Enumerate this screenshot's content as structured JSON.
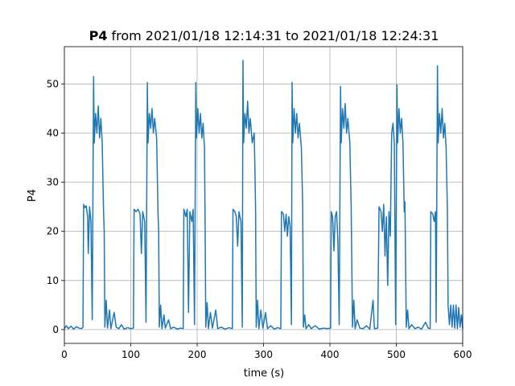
{
  "chart_data": {
    "type": "line",
    "title_variable": "P4",
    "title_range": "from 2021/01/18 12:14:31 to 2021/01/18 12:24:31",
    "xlabel": "time (s)",
    "ylabel": "P4",
    "color": "#1f77b4",
    "grid": true,
    "xlim": [
      0,
      600
    ],
    "ylim": [
      -2.8,
      57.6
    ],
    "xticks": [
      0,
      100,
      200,
      300,
      400,
      500,
      600
    ],
    "yticks": [
      0,
      10,
      20,
      30,
      40,
      50
    ],
    "x": [
      0,
      3,
      6,
      10,
      14,
      18,
      22,
      26,
      28,
      29,
      31,
      33,
      35,
      36,
      38,
      40,
      42,
      44,
      45,
      47,
      49,
      51,
      53,
      55,
      57,
      59,
      60,
      61,
      63,
      65,
      68,
      70,
      75,
      78,
      82,
      86,
      90,
      95,
      100,
      104,
      105,
      108,
      111,
      114,
      116,
      118,
      121,
      123,
      125,
      126,
      128,
      130,
      132,
      134,
      136,
      139,
      141,
      142,
      143,
      145,
      147,
      150,
      152,
      157,
      160,
      165,
      170,
      175,
      179,
      180,
      183,
      185,
      187,
      189,
      192,
      194,
      196,
      198,
      199,
      201,
      203,
      205,
      207,
      209,
      211,
      212,
      213,
      215,
      217,
      220,
      223,
      228,
      231,
      236,
      242,
      248,
      253,
      254,
      257,
      259,
      261,
      263,
      266,
      268,
      269,
      270,
      272,
      274,
      276,
      278,
      280,
      283,
      286,
      288,
      289,
      291,
      293,
      296,
      299,
      303,
      306,
      311,
      316,
      321,
      326,
      327,
      330,
      332,
      334,
      336,
      338,
      340,
      342,
      343,
      344,
      346,
      348,
      350,
      352,
      354,
      357,
      359,
      360,
      362,
      364,
      368,
      372,
      378,
      384,
      390,
      396,
      401,
      402,
      404,
      406,
      408,
      410,
      412,
      414,
      416,
      417,
      419,
      421,
      423,
      425,
      427,
      430,
      432,
      434,
      436,
      438,
      441,
      445,
      450,
      455,
      460,
      465,
      467,
      472,
      474,
      477,
      479,
      481,
      483,
      485,
      487,
      489,
      491,
      493,
      495,
      497,
      499,
      501,
      502,
      504,
      506,
      508,
      510,
      512,
      513,
      515,
      517,
      519,
      523,
      528,
      533,
      538,
      544,
      548,
      551,
      552,
      555,
      557,
      559,
      560,
      562,
      563,
      565,
      567,
      569,
      571,
      573,
      575,
      577,
      578,
      580,
      582,
      584,
      586,
      588,
      590,
      592,
      594,
      596,
      598,
      600
    ],
    "values": [
      0.2,
      0.8,
      0.2,
      0.7,
      0.1,
      0.6,
      0.3,
      0.2,
      0.5,
      25.5,
      24.8,
      25.2,
      23,
      15.5,
      25,
      22,
      2,
      51.5,
      38,
      44,
      40,
      45.5,
      39,
      43,
      38,
      24,
      20,
      0.5,
      6,
      0.3,
      4,
      0.2,
      3.5,
      0.5,
      0.2,
      1,
      0.1,
      0.4,
      0.2,
      0.3,
      24.5,
      24,
      24.5,
      23.5,
      15.5,
      24,
      22,
      1.5,
      50.3,
      38,
      44,
      41,
      45,
      40,
      43,
      39,
      24,
      20,
      0.5,
      5,
      0.2,
      3,
      0.3,
      2,
      0.2,
      0.5,
      0.1,
      0.3,
      0.2,
      24.5,
      23,
      24.5,
      3.5,
      24,
      22,
      24.5,
      1,
      50.3,
      39,
      45,
      40,
      44,
      39,
      42,
      37,
      22,
      0.5,
      5.5,
      0.2,
      3.5,
      0.3,
      4,
      0.2,
      0.5,
      0.1,
      0.4,
      0.2,
      24.5,
      24,
      23,
      17,
      24,
      22,
      0.5,
      54.8,
      38,
      44,
      41,
      46.5,
      40,
      43,
      38,
      40,
      25,
      0.5,
      6,
      0.2,
      4,
      0.3,
      3.5,
      0.2,
      0.8,
      0.1,
      0.4,
      0.2,
      24,
      23.5,
      20,
      23.5,
      19,
      23,
      21,
      1,
      50.3,
      38,
      45,
      40,
      44,
      39,
      42,
      37,
      25,
      0.5,
      3,
      0.2,
      1,
      0.2,
      0.8,
      0.1,
      0.3,
      0.2,
      0.3,
      24,
      23,
      16,
      23,
      24,
      18,
      1,
      49.5,
      38,
      45,
      41,
      46,
      40,
      43,
      38,
      25,
      0.5,
      6,
      0.2,
      2,
      0.3,
      0.2,
      0.8,
      0.1,
      6,
      0.2,
      0.3,
      25,
      24,
      20,
      25.5,
      15,
      23,
      9,
      24,
      19,
      40,
      42,
      38,
      1,
      49.8,
      38,
      45,
      40,
      43,
      38,
      24,
      26,
      0.5,
      4,
      0.2,
      1,
      0.2,
      0.5,
      0.1,
      1.5,
      0.3,
      0.2,
      24,
      23.5,
      22,
      24,
      1.5,
      53.7,
      38,
      44,
      40,
      45,
      39,
      42,
      37,
      24,
      5,
      1,
      5,
      0.5,
      5,
      0.3,
      5,
      0.2,
      4.5,
      0.5,
      3,
      0.2
    ]
  }
}
